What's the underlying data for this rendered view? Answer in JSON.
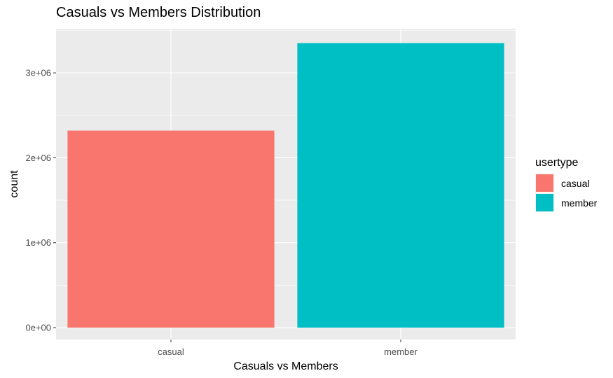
{
  "chart_data": {
    "type": "bar",
    "title": "Casuals vs Members Distribution",
    "xlabel": "Casuals vs Members",
    "ylabel": "count",
    "categories": [
      "casual",
      "member"
    ],
    "values": [
      2320000,
      3350000
    ],
    "colors": [
      "#F8766D",
      "#00BFC4"
    ],
    "ylim": [
      -140000,
      3520000
    ],
    "yticks": [
      0,
      1000000,
      2000000,
      3000000
    ],
    "ytick_labels": [
      "0e+00",
      "1e+06",
      "2e+06",
      "3e+06"
    ],
    "grid": true,
    "panel_background": "#EBEBEB",
    "grid_color": "#FFFFFF",
    "legend": {
      "title": "usertype",
      "position": "right",
      "entries": [
        "casual",
        "member"
      ]
    }
  }
}
